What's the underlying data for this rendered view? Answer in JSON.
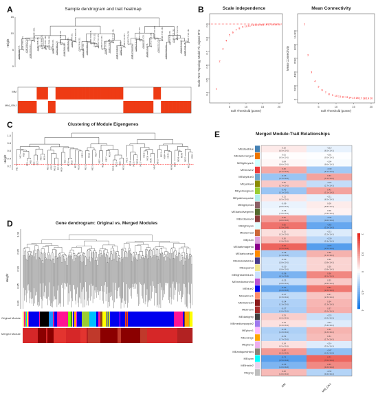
{
  "panels": {
    "A": {
      "letter": "A",
      "title": "Sample dendrogram and trait heatmap",
      "ylabel": "Height",
      "yticks": [
        "0",
        "5",
        "10",
        "15"
      ],
      "ylim": [
        0,
        15
      ],
      "traits": [
        "MM",
        "MM_ONJ"
      ],
      "trait_pattern": {
        "MM": [
          0,
          0,
          0,
          0,
          0,
          1,
          1,
          1,
          0,
          0,
          1,
          1,
          1,
          1,
          1,
          1,
          1,
          1,
          1,
          1,
          1,
          1,
          1,
          1,
          1,
          1,
          1,
          1,
          0,
          0,
          0,
          0,
          0,
          0,
          0,
          0,
          1,
          1,
          0,
          0,
          0,
          0,
          0,
          0,
          0,
          0
        ],
        "MM_ONJ": [
          1,
          1,
          1,
          1,
          1,
          0,
          0,
          0,
          1,
          1,
          0,
          0,
          0,
          0,
          0,
          0,
          0,
          0,
          0,
          0,
          0,
          0,
          0,
          0,
          0,
          0,
          0,
          0,
          1,
          1,
          1,
          1,
          1,
          1,
          1,
          1,
          0,
          0,
          1,
          1,
          1,
          1,
          1,
          1,
          1,
          1
        ]
      },
      "colors": {
        "on": "#ee3b14",
        "off": "#ffffff"
      }
    },
    "B": {
      "letter": "B",
      "left": {
        "title": "Scale independence",
        "xlabel": "Soft Threshold (power)",
        "ylabel": "Scale Free Topology Model Fit, signed R^2",
        "xticks": [
          "5",
          "10",
          "15",
          "20"
        ],
        "yticks": [
          "0.4",
          "0.5",
          "0.6",
          "0.7",
          "0.8",
          "0.9"
        ],
        "xlim": [
          0,
          20
        ],
        "ylim": [
          0.35,
          0.95
        ],
        "cutoff": 0.9
      },
      "right": {
        "title": "Mean Connectivity",
        "xlabel": "Soft Threshold (power)",
        "ylabel": "Mean Connectivity",
        "xticks": [
          "5",
          "10",
          "15",
          "20"
        ],
        "yticks": [
          "0",
          "2000",
          "4000",
          "6000",
          "8000",
          "10,000"
        ],
        "xlim": [
          0,
          20
        ],
        "ylim": [
          0,
          12000
        ]
      },
      "point_color": "#ff0000"
    },
    "C": {
      "letter": "C",
      "title": "Clustering of Module Eigengenes",
      "ylabel": "Height",
      "yticks": [
        "0.2",
        "0.4",
        "0.6",
        "0.8",
        "1.0"
      ],
      "ylim": [
        0.1,
        1.1
      ],
      "cut_height": 0.25
    },
    "D": {
      "letter": "D",
      "title": "Gene dendrogram: Original vs. Merged Modules",
      "ylabel": "Height",
      "yticks": [
        "0.80",
        "0.85",
        "0.90",
        "0.95",
        "1.00"
      ],
      "ylim": [
        0.78,
        1.0
      ],
      "rows": [
        "Original Module",
        "Merged Module"
      ]
    },
    "E": {
      "letter": "E",
      "title": "Merged Module-Trait Relationships",
      "columns": [
        "MM",
        "MM_ONJ"
      ],
      "legend_ticks": [
        "1",
        "0.5",
        "0",
        "-0.5",
        "-1"
      ]
    }
  },
  "chart_data": [
    {
      "type": "scatter",
      "title": "Scale independence",
      "xlabel": "Soft Threshold (power)",
      "ylabel": "Scale Free Topology Model Fit, signed R^2",
      "xlim": [
        0,
        20
      ],
      "ylim": [
        0.35,
        0.95
      ],
      "x": [
        1,
        2,
        3,
        4,
        5,
        6,
        7,
        8,
        9,
        10,
        11,
        12,
        13,
        14,
        15,
        16,
        17,
        18,
        19,
        20
      ],
      "y": [
        0.43,
        0.63,
        0.72,
        0.78,
        0.82,
        0.84,
        0.86,
        0.87,
        0.88,
        0.885,
        0.89,
        0.892,
        0.894,
        0.895,
        0.896,
        0.897,
        0.897,
        0.898,
        0.898,
        0.898
      ]
    },
    {
      "type": "scatter",
      "title": "Mean Connectivity",
      "xlabel": "Soft Threshold (power)",
      "ylabel": "Mean Connectivity",
      "xlim": [
        0,
        20
      ],
      "ylim": [
        0,
        12000
      ],
      "x": [
        1,
        2,
        3,
        4,
        5,
        6,
        7,
        8,
        9,
        10,
        11,
        12,
        13,
        14,
        15,
        16,
        17,
        18,
        19,
        20
      ],
      "y": [
        11000,
        6500,
        4000,
        2700,
        1900,
        1400,
        1050,
        820,
        660,
        540,
        450,
        380,
        330,
        290,
        260,
        235,
        215,
        200,
        188,
        178
      ]
    },
    {
      "type": "heatmap",
      "title": "Merged Module-Trait Relationships",
      "columns": [
        "MM",
        "MM_ONJ"
      ],
      "rows": [
        {
          "module": "MEsteelblue",
          "color": "#4682b4",
          "cor": 0.1,
          "p": "(6.5×10-1)"
        },
        {
          "module": "MEdarkorange2",
          "color": "#ee7600",
          "cor": 0.01,
          "p": "(9.5×10-1)"
        },
        {
          "module": "MElightcyan1",
          "color": "#d1ffff",
          "cor": 0.04,
          "p": "(8.6×10-1)"
        },
        {
          "module": "MEbrown2",
          "color": "#ee3b3b",
          "cor": 0.4,
          "p": "(6.1×10-2)"
        },
        {
          "module": "MEskyblue3",
          "color": "#6ca6cd",
          "cor": -0.43,
          "p": "(5.1×10-2)"
        },
        {
          "module": "MEyellow4",
          "color": "#8b8b00",
          "cor": 0.25,
          "p": "(2.7×10-1)"
        },
        {
          "module": "MEyellowgreen",
          "color": "#9acd32",
          "cor": -0.43,
          "p": "(5.1×10-2)"
        },
        {
          "module": "MEpaleturquoise",
          "color": "#afeeee",
          "cor": 0.11,
          "p": "(6.5×10-1)"
        },
        {
          "module": "MElightpink4",
          "color": "#8b5f65",
          "cor": -0.09,
          "p": "(6.8×10-1)"
        },
        {
          "module": "MEdarkolivegreen",
          "color": "#556b2f",
          "cor": -0.06,
          "p": "(7.8×10-1)"
        },
        {
          "module": "MEindianred4",
          "color": "#8b3a3a",
          "cor": 0.45,
          "p": "(4.6×10-2)"
        },
        {
          "module": "MElightcyan",
          "color": "#e0ffff",
          "cor": 0.65,
          "p": "(1.5×10-3)"
        },
        {
          "module": "MEsienna3",
          "color": "#cd6839",
          "cor": 0.15,
          "p": "(5.2×10-1)"
        },
        {
          "module": "MEplum",
          "color": "#dda0dd",
          "cor": 0.3,
          "p": "(1.9×10-1)"
        },
        {
          "module": "MEdarkmagenta",
          "color": "#8b008b",
          "cor": 0.72,
          "p": "(2.5×10-4)"
        },
        {
          "module": "MEdarkorange",
          "color": "#ff8c00",
          "cor": -0.36,
          "p": "(1.1×10-1)"
        },
        {
          "module": "MEdarkslateblue",
          "color": "#483d8b",
          "cor": -0.2,
          "p": "(3.8×10-1)"
        },
        {
          "module": "MEsquared",
          "color": "#f0e68c",
          "cor": -0.2,
          "p": "(3.8×10-1)"
        },
        {
          "module": "MElightsteelblue1",
          "color": "#cae1ff",
          "cor": -0.56,
          "p": "(8.1×10-3)"
        },
        {
          "module": "MEmediumorchid",
          "color": "#ba55d3",
          "cor": -0.25,
          "p": "(2.8×10-1)"
        },
        {
          "module": "MEblue2",
          "color": "#0000ee",
          "cor": -0.63,
          "p": "(2.2×10-3)"
        },
        {
          "module": "MEsalmon1",
          "color": "#ff8c69",
          "cor": -0.27,
          "p": "(2.3×10-1)"
        },
        {
          "module": "MEfirebrick4",
          "color": "#8b1a1a",
          "cor": -0.34,
          "p": "(1.3×10-1)"
        },
        {
          "module": "MEbrown",
          "color": "#a52a2a",
          "cor": -0.37,
          "p": "(1.0×10-1)"
        },
        {
          "module": "MEdarkgrey",
          "color": "#404040",
          "cor": 0.23,
          "p": "(3.2×10-1)"
        },
        {
          "module": "MEmediumpurple2",
          "color": "#9f79ee",
          "cor": 0.14,
          "p": "(5.4×10-1)"
        },
        {
          "module": "MEplum1",
          "color": "#ffbbff",
          "cor": -0.35,
          "p": "(1.2×10-1)"
        },
        {
          "module": "MEorange",
          "color": "#ffa500",
          "cor": -0.31,
          "p": "(1.7×10-1)"
        },
        {
          "module": "MEplum2",
          "color": "#eeaeee",
          "cor": 0.14,
          "p": "(5.5×10-1)"
        },
        {
          "module": "MEantiquewhite4",
          "color": "#8b8378",
          "cor": 0.47,
          "p": "(3.4×10-2)"
        },
        {
          "module": "MEcyan",
          "color": "#00ffff",
          "cor": -0.71,
          "p": "(3.5×10-4)"
        },
        {
          "module": "MEthistle2",
          "color": "#eed2ee",
          "cor": -0.55,
          "p": "(1.0×10-2)"
        },
        {
          "module": "MEgrey",
          "color": "#bebebe",
          "cor": 0.32,
          "p": "(1.6×10-1)"
        }
      ]
    }
  ]
}
